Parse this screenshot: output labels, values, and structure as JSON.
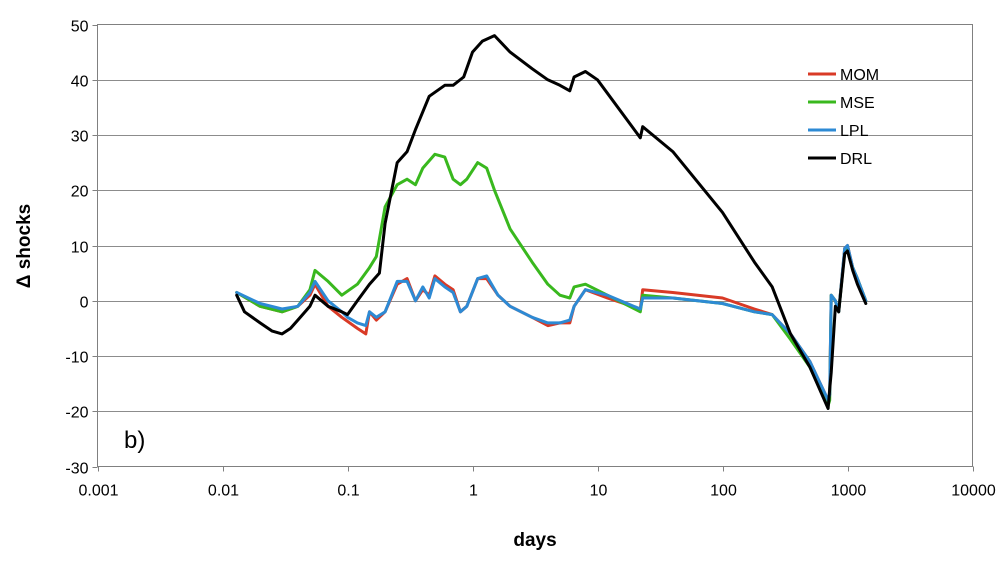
{
  "chart_data": {
    "type": "line",
    "panel_label": "b)",
    "xlabel": "days",
    "ylabel": "Δ shocks",
    "x_scale": "log",
    "xlim": [
      0.001,
      10000
    ],
    "ylim": [
      -30,
      50
    ],
    "x_ticks": [
      0.001,
      0.01,
      0.1,
      1,
      10,
      100,
      1000,
      10000
    ],
    "x_tick_labels": [
      "0.001",
      "0.01",
      "0.1",
      "1",
      "10",
      "100",
      "1000",
      "10000"
    ],
    "y_ticks": [
      -30,
      -20,
      -10,
      0,
      10,
      20,
      30,
      40,
      50
    ],
    "y_tick_labels": [
      "-30",
      "-20",
      "-10",
      "0",
      "10",
      "20",
      "30",
      "40",
      "50"
    ],
    "grid": "horizontal",
    "legend_position": "top-right",
    "series": [
      {
        "name": "MOM",
        "color": "#d93a26",
        "points": [
          [
            0.013,
            1.5
          ],
          [
            0.02,
            -1
          ],
          [
            0.03,
            -2
          ],
          [
            0.04,
            -1
          ],
          [
            0.05,
            1
          ],
          [
            0.055,
            3
          ],
          [
            0.07,
            -1
          ],
          [
            0.09,
            -3
          ],
          [
            0.12,
            -5
          ],
          [
            0.14,
            -6
          ],
          [
            0.15,
            -2
          ],
          [
            0.17,
            -3.5
          ],
          [
            0.2,
            -2
          ],
          [
            0.25,
            3
          ],
          [
            0.3,
            4
          ],
          [
            0.35,
            0
          ],
          [
            0.4,
            2
          ],
          [
            0.45,
            1
          ],
          [
            0.5,
            4.5
          ],
          [
            0.6,
            3
          ],
          [
            0.7,
            2
          ],
          [
            0.8,
            -2
          ],
          [
            0.9,
            -1
          ],
          [
            1.1,
            4
          ],
          [
            1.3,
            4
          ],
          [
            1.6,
            1
          ],
          [
            2,
            -1
          ],
          [
            3,
            -3
          ],
          [
            4,
            -4.5
          ],
          [
            5,
            -4
          ],
          [
            6,
            -4
          ],
          [
            6.5,
            -1
          ],
          [
            8,
            2
          ],
          [
            12,
            0.5
          ],
          [
            22,
            -1.5
          ],
          [
            23,
            2
          ],
          [
            40,
            1.5
          ],
          [
            100,
            0.5
          ],
          [
            180,
            -1.5
          ],
          [
            250,
            -2.5
          ],
          [
            350,
            -6
          ],
          [
            500,
            -11
          ],
          [
            700,
            -18
          ],
          [
            720,
            -17
          ],
          [
            740,
            1
          ],
          [
            800,
            0
          ],
          [
            850,
            -2
          ],
          [
            950,
            9.5
          ],
          [
            1000,
            10
          ],
          [
            1100,
            6
          ],
          [
            1200,
            4
          ],
          [
            1400,
            0
          ]
        ]
      },
      {
        "name": "MSE",
        "color": "#39b81e",
        "points": [
          [
            0.013,
            1.5
          ],
          [
            0.02,
            -1
          ],
          [
            0.03,
            -2
          ],
          [
            0.04,
            -1
          ],
          [
            0.05,
            2
          ],
          [
            0.055,
            5.5
          ],
          [
            0.07,
            3.5
          ],
          [
            0.09,
            1
          ],
          [
            0.12,
            3
          ],
          [
            0.15,
            6
          ],
          [
            0.17,
            8
          ],
          [
            0.2,
            17
          ],
          [
            0.25,
            21
          ],
          [
            0.3,
            22
          ],
          [
            0.35,
            21
          ],
          [
            0.4,
            24
          ],
          [
            0.5,
            26.5
          ],
          [
            0.6,
            26
          ],
          [
            0.7,
            22
          ],
          [
            0.8,
            21
          ],
          [
            0.9,
            22
          ],
          [
            1.1,
            25
          ],
          [
            1.3,
            24
          ],
          [
            1.5,
            20
          ],
          [
            2,
            13
          ],
          [
            3,
            7
          ],
          [
            4,
            3
          ],
          [
            5,
            1
          ],
          [
            6,
            0.5
          ],
          [
            6.5,
            2.5
          ],
          [
            8,
            3
          ],
          [
            12,
            1
          ],
          [
            22,
            -2
          ],
          [
            23,
            1
          ],
          [
            40,
            0.5
          ],
          [
            100,
            -0.5
          ],
          [
            180,
            -2
          ],
          [
            250,
            -2.5
          ],
          [
            350,
            -7
          ],
          [
            500,
            -12
          ],
          [
            700,
            -19
          ],
          [
            720,
            -18
          ],
          [
            740,
            1
          ],
          [
            800,
            0
          ],
          [
            850,
            -2
          ],
          [
            950,
            9
          ],
          [
            1000,
            9.5
          ],
          [
            1100,
            6
          ],
          [
            1200,
            4
          ],
          [
            1400,
            0
          ]
        ]
      },
      {
        "name": "LPL",
        "color": "#2d8ad4",
        "points": [
          [
            0.013,
            1.5
          ],
          [
            0.02,
            -0.5
          ],
          [
            0.03,
            -1.5
          ],
          [
            0.04,
            -1
          ],
          [
            0.05,
            1.5
          ],
          [
            0.055,
            3.5
          ],
          [
            0.07,
            0
          ],
          [
            0.09,
            -2
          ],
          [
            0.1,
            -3
          ],
          [
            0.12,
            -4
          ],
          [
            0.14,
            -4.5
          ],
          [
            0.15,
            -2
          ],
          [
            0.17,
            -3
          ],
          [
            0.2,
            -2
          ],
          [
            0.25,
            3.5
          ],
          [
            0.3,
            3.5
          ],
          [
            0.35,
            0
          ],
          [
            0.4,
            2.5
          ],
          [
            0.45,
            0.5
          ],
          [
            0.5,
            4
          ],
          [
            0.6,
            2.5
          ],
          [
            0.7,
            1.5
          ],
          [
            0.8,
            -2
          ],
          [
            0.9,
            -1
          ],
          [
            1.1,
            4
          ],
          [
            1.3,
            4.5
          ],
          [
            1.6,
            1
          ],
          [
            2,
            -1
          ],
          [
            3,
            -3
          ],
          [
            4,
            -4
          ],
          [
            5,
            -4
          ],
          [
            6,
            -3.5
          ],
          [
            6.5,
            -1
          ],
          [
            8,
            2
          ],
          [
            12,
            1
          ],
          [
            22,
            -1.5
          ],
          [
            23,
            0.5
          ],
          [
            40,
            0.5
          ],
          [
            100,
            -0.5
          ],
          [
            180,
            -2
          ],
          [
            250,
            -2.5
          ],
          [
            350,
            -6
          ],
          [
            500,
            -11
          ],
          [
            700,
            -18
          ],
          [
            720,
            -17
          ],
          [
            740,
            1
          ],
          [
            800,
            0
          ],
          [
            850,
            -2
          ],
          [
            950,
            9.5
          ],
          [
            1000,
            10
          ],
          [
            1100,
            6
          ],
          [
            1200,
            4
          ],
          [
            1400,
            0
          ]
        ]
      },
      {
        "name": "DRL",
        "color": "#000000",
        "points": [
          [
            0.013,
            1
          ],
          [
            0.015,
            -2
          ],
          [
            0.02,
            -4
          ],
          [
            0.025,
            -5.5
          ],
          [
            0.03,
            -6
          ],
          [
            0.035,
            -5
          ],
          [
            0.04,
            -3.5
          ],
          [
            0.05,
            -1
          ],
          [
            0.055,
            1
          ],
          [
            0.07,
            -1
          ],
          [
            0.09,
            -2
          ],
          [
            0.1,
            -2.5
          ],
          [
            0.12,
            0
          ],
          [
            0.15,
            3
          ],
          [
            0.18,
            5
          ],
          [
            0.2,
            14
          ],
          [
            0.25,
            25
          ],
          [
            0.3,
            27
          ],
          [
            0.35,
            31
          ],
          [
            0.45,
            37
          ],
          [
            0.6,
            39
          ],
          [
            0.7,
            39
          ],
          [
            0.85,
            40.5
          ],
          [
            1,
            45
          ],
          [
            1.2,
            47
          ],
          [
            1.5,
            48
          ],
          [
            2,
            45
          ],
          [
            3,
            42
          ],
          [
            4,
            40
          ],
          [
            5,
            39
          ],
          [
            6,
            38
          ],
          [
            6.5,
            40.5
          ],
          [
            8,
            41.5
          ],
          [
            10,
            40
          ],
          [
            22,
            29.5
          ],
          [
            23,
            31.5
          ],
          [
            40,
            27
          ],
          [
            100,
            16
          ],
          [
            180,
            7
          ],
          [
            250,
            2.5
          ],
          [
            350,
            -6
          ],
          [
            500,
            -12
          ],
          [
            700,
            -19.5
          ],
          [
            720,
            -16
          ],
          [
            740,
            -13
          ],
          [
            800,
            -1
          ],
          [
            850,
            -2
          ],
          [
            950,
            8.5
          ],
          [
            1000,
            9
          ],
          [
            1100,
            5.5
          ],
          [
            1200,
            3
          ],
          [
            1400,
            -0.5
          ]
        ]
      }
    ]
  }
}
